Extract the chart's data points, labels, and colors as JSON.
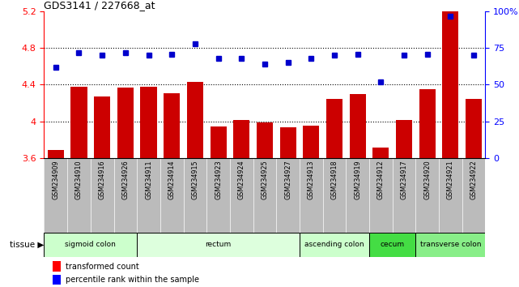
{
  "title": "GDS3141 / 227668_at",
  "samples": [
    "GSM234909",
    "GSM234910",
    "GSM234916",
    "GSM234926",
    "GSM234911",
    "GSM234914",
    "GSM234915",
    "GSM234923",
    "GSM234924",
    "GSM234925",
    "GSM234927",
    "GSM234913",
    "GSM234918",
    "GSM234919",
    "GSM234912",
    "GSM234917",
    "GSM234920",
    "GSM234921",
    "GSM234922"
  ],
  "bar_values": [
    3.69,
    4.38,
    4.27,
    4.37,
    4.38,
    4.31,
    4.43,
    3.94,
    4.01,
    3.99,
    3.93,
    3.95,
    4.24,
    4.3,
    3.71,
    4.01,
    4.35,
    5.21,
    4.24
  ],
  "dot_values": [
    62,
    72,
    70,
    72,
    70,
    71,
    78,
    68,
    68,
    64,
    65,
    68,
    70,
    71,
    52,
    70,
    71,
    97,
    70
  ],
  "ymin": 3.6,
  "ymax": 5.2,
  "yticks": [
    3.6,
    4.0,
    4.4,
    4.8,
    5.2
  ],
  "ytick_labels": [
    "3.6",
    "4",
    "4.4",
    "4.8",
    "5.2"
  ],
  "y2min": 0,
  "y2max": 100,
  "y2ticks": [
    0,
    25,
    50,
    75,
    100
  ],
  "y2tick_labels": [
    "0",
    "25",
    "50",
    "75",
    "100%"
  ],
  "bar_color": "#CC0000",
  "dot_color": "#0000CC",
  "tick_area_color": "#BBBBBB",
  "tissue_groups": [
    {
      "label": "sigmoid colon",
      "start": 0,
      "end": 4,
      "color": "#CCFFCC"
    },
    {
      "label": "rectum",
      "start": 4,
      "end": 11,
      "color": "#DDFFDD"
    },
    {
      "label": "ascending colon",
      "start": 11,
      "end": 14,
      "color": "#CCFFCC"
    },
    {
      "label": "cecum",
      "start": 14,
      "end": 16,
      "color": "#44DD44"
    },
    {
      "label": "transverse colon",
      "start": 16,
      "end": 19,
      "color": "#88EE88"
    }
  ],
  "fig_width": 6.41,
  "fig_height": 3.54,
  "dpi": 100
}
